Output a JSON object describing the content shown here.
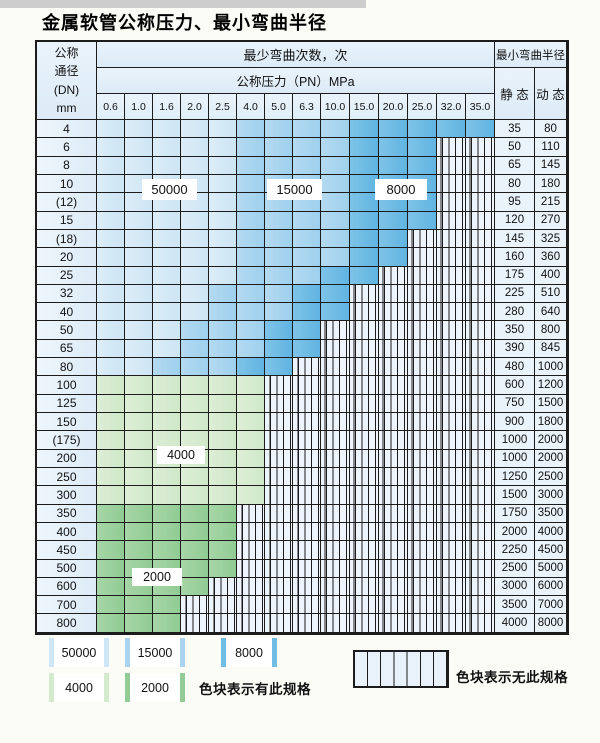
{
  "title": "金属软管公称压力、最小弯曲半径",
  "table": {
    "dn_header_lines": [
      "公称",
      "通径",
      "(DN)",
      "mm"
    ],
    "cycles_header": "最少弯曲次数，次",
    "pressure_header": "公称压力（PN）MPa",
    "radius_header": "最小弯曲半径",
    "static_header": "静 态",
    "dynamic_header": "动 态",
    "pressures": [
      "0.6",
      "1.0",
      "1.6",
      "2.0",
      "2.5",
      "4.0",
      "5.0",
      "6.3",
      "10.0",
      "15.0",
      "20.0",
      "25.0",
      "32.0",
      "35.0"
    ],
    "cell_legend": {
      "L": "50000",
      "M": "15000",
      "D": "8000",
      "g": "4000",
      "G": "2000",
      "x": "无此规格"
    },
    "rows": [
      {
        "dn": "4",
        "cells": [
          "L",
          "L",
          "L",
          "L",
          "L",
          "M",
          "M",
          "M",
          "M",
          "D",
          "D",
          "D",
          "D",
          "D"
        ],
        "static": "35",
        "dynamic": "80"
      },
      {
        "dn": "6",
        "cells": [
          "L",
          "L",
          "L",
          "L",
          "L",
          "M",
          "M",
          "M",
          "M",
          "D",
          "D",
          "D",
          "x",
          "x"
        ],
        "static": "50",
        "dynamic": "110"
      },
      {
        "dn": "8",
        "cells": [
          "L",
          "L",
          "L",
          "L",
          "L",
          "M",
          "M",
          "M",
          "M",
          "D",
          "D",
          "D",
          "x",
          "x"
        ],
        "static": "65",
        "dynamic": "145"
      },
      {
        "dn": "10",
        "cells": [
          "L",
          "L",
          "L",
          "L",
          "L",
          "M",
          "M",
          "M",
          "M",
          "D",
          "D",
          "D",
          "x",
          "x"
        ],
        "static": "80",
        "dynamic": "180"
      },
      {
        "dn": "(12)",
        "cells": [
          "L",
          "L",
          "L",
          "L",
          "L",
          "M",
          "M",
          "M",
          "M",
          "D",
          "D",
          "D",
          "x",
          "x"
        ],
        "static": "95",
        "dynamic": "215"
      },
      {
        "dn": "15",
        "cells": [
          "L",
          "L",
          "L",
          "L",
          "L",
          "M",
          "M",
          "M",
          "M",
          "D",
          "D",
          "D",
          "x",
          "x"
        ],
        "static": "120",
        "dynamic": "270"
      },
      {
        "dn": "(18)",
        "cells": [
          "L",
          "L",
          "L",
          "L",
          "L",
          "M",
          "M",
          "M",
          "M",
          "D",
          "D",
          "x",
          "x",
          "x"
        ],
        "static": "145",
        "dynamic": "325"
      },
      {
        "dn": "20",
        "cells": [
          "L",
          "L",
          "L",
          "L",
          "L",
          "M",
          "M",
          "M",
          "M",
          "D",
          "D",
          "x",
          "x",
          "x"
        ],
        "static": "160",
        "dynamic": "360"
      },
      {
        "dn": "25",
        "cells": [
          "L",
          "L",
          "L",
          "L",
          "L",
          "M",
          "M",
          "M",
          "D",
          "D",
          "x",
          "x",
          "x",
          "x"
        ],
        "static": "175",
        "dynamic": "400"
      },
      {
        "dn": "32",
        "cells": [
          "L",
          "L",
          "L",
          "L",
          "M",
          "M",
          "M",
          "D",
          "D",
          "x",
          "x",
          "x",
          "x",
          "x"
        ],
        "static": "225",
        "dynamic": "510"
      },
      {
        "dn": "40",
        "cells": [
          "L",
          "L",
          "L",
          "L",
          "M",
          "M",
          "M",
          "D",
          "D",
          "x",
          "x",
          "x",
          "x",
          "x"
        ],
        "static": "280",
        "dynamic": "640"
      },
      {
        "dn": "50",
        "cells": [
          "L",
          "L",
          "L",
          "M",
          "M",
          "M",
          "D",
          "D",
          "x",
          "x",
          "x",
          "x",
          "x",
          "x"
        ],
        "static": "350",
        "dynamic": "800"
      },
      {
        "dn": "65",
        "cells": [
          "L",
          "L",
          "L",
          "M",
          "M",
          "M",
          "D",
          "D",
          "x",
          "x",
          "x",
          "x",
          "x",
          "x"
        ],
        "static": "390",
        "dynamic": "845"
      },
      {
        "dn": "80",
        "cells": [
          "L",
          "L",
          "M",
          "M",
          "M",
          "D",
          "D",
          "x",
          "x",
          "x",
          "x",
          "x",
          "x",
          "x"
        ],
        "static": "480",
        "dynamic": "1000"
      },
      {
        "dn": "100",
        "cells": [
          "g",
          "g",
          "g",
          "g",
          "g",
          "g",
          "x",
          "x",
          "x",
          "x",
          "x",
          "x",
          "x",
          "x"
        ],
        "static": "600",
        "dynamic": "1200"
      },
      {
        "dn": "125",
        "cells": [
          "g",
          "g",
          "g",
          "g",
          "g",
          "g",
          "x",
          "x",
          "x",
          "x",
          "x",
          "x",
          "x",
          "x"
        ],
        "static": "750",
        "dynamic": "1500"
      },
      {
        "dn": "150",
        "cells": [
          "g",
          "g",
          "g",
          "g",
          "g",
          "g",
          "x",
          "x",
          "x",
          "x",
          "x",
          "x",
          "x",
          "x"
        ],
        "static": "900",
        "dynamic": "1800"
      },
      {
        "dn": "(175)",
        "cells": [
          "g",
          "g",
          "g",
          "g",
          "g",
          "g",
          "x",
          "x",
          "x",
          "x",
          "x",
          "x",
          "x",
          "x"
        ],
        "static": "1000",
        "dynamic": "2000"
      },
      {
        "dn": "200",
        "cells": [
          "g",
          "g",
          "g",
          "g",
          "g",
          "g",
          "x",
          "x",
          "x",
          "x",
          "x",
          "x",
          "x",
          "x"
        ],
        "static": "1000",
        "dynamic": "2000"
      },
      {
        "dn": "250",
        "cells": [
          "g",
          "g",
          "g",
          "g",
          "g",
          "g",
          "x",
          "x",
          "x",
          "x",
          "x",
          "x",
          "x",
          "x"
        ],
        "static": "1250",
        "dynamic": "2500"
      },
      {
        "dn": "300",
        "cells": [
          "g",
          "g",
          "g",
          "g",
          "g",
          "g",
          "x",
          "x",
          "x",
          "x",
          "x",
          "x",
          "x",
          "x"
        ],
        "static": "1500",
        "dynamic": "3000"
      },
      {
        "dn": "350",
        "cells": [
          "G",
          "G",
          "G",
          "G",
          "G",
          "x",
          "x",
          "x",
          "x",
          "x",
          "x",
          "x",
          "x",
          "x"
        ],
        "static": "1750",
        "dynamic": "3500"
      },
      {
        "dn": "400",
        "cells": [
          "G",
          "G",
          "G",
          "G",
          "G",
          "x",
          "x",
          "x",
          "x",
          "x",
          "x",
          "x",
          "x",
          "x"
        ],
        "static": "2000",
        "dynamic": "4000"
      },
      {
        "dn": "450",
        "cells": [
          "G",
          "G",
          "G",
          "G",
          "G",
          "x",
          "x",
          "x",
          "x",
          "x",
          "x",
          "x",
          "x",
          "x"
        ],
        "static": "2250",
        "dynamic": "4500"
      },
      {
        "dn": "500",
        "cells": [
          "G",
          "G",
          "G",
          "G",
          "G",
          "x",
          "x",
          "x",
          "x",
          "x",
          "x",
          "x",
          "x",
          "x"
        ],
        "static": "2500",
        "dynamic": "5000"
      },
      {
        "dn": "600",
        "cells": [
          "G",
          "G",
          "G",
          "G",
          "x",
          "x",
          "x",
          "x",
          "x",
          "x",
          "x",
          "x",
          "x",
          "x"
        ],
        "static": "3000",
        "dynamic": "6000"
      },
      {
        "dn": "700",
        "cells": [
          "G",
          "G",
          "G",
          "x",
          "x",
          "x",
          "x",
          "x",
          "x",
          "x",
          "x",
          "x",
          "x",
          "x"
        ],
        "static": "3500",
        "dynamic": "7000"
      },
      {
        "dn": "800",
        "cells": [
          "G",
          "G",
          "G",
          "x",
          "x",
          "x",
          "x",
          "x",
          "x",
          "x",
          "x",
          "x",
          "x",
          "x"
        ],
        "static": "4000",
        "dynamic": "8000"
      }
    ]
  },
  "overlay_labels": {
    "l50000": "50000",
    "l15000": "15000",
    "l8000": "8000",
    "l4000": "4000",
    "l2000": "2000"
  },
  "legend": {
    "swatches": [
      {
        "label": "50000",
        "style": "b1"
      },
      {
        "label": "15000",
        "style": "b2"
      },
      {
        "label": "8000",
        "style": "b3"
      },
      {
        "label": "4000",
        "style": "g1"
      },
      {
        "label": "2000",
        "style": "g2"
      }
    ],
    "present_note": "色块表示有此规格",
    "absent_note": "色块表示无此规格"
  },
  "colors": {
    "blue_50000": "#d6eaf7",
    "blue_15000": "#a7d4ef",
    "blue_8000": "#6fbde6",
    "green_4000": "#d7ecd0",
    "green_2000": "#9bd09e",
    "hatch_bg": "#edf4fb",
    "grid_line": "#1c1c1c"
  }
}
